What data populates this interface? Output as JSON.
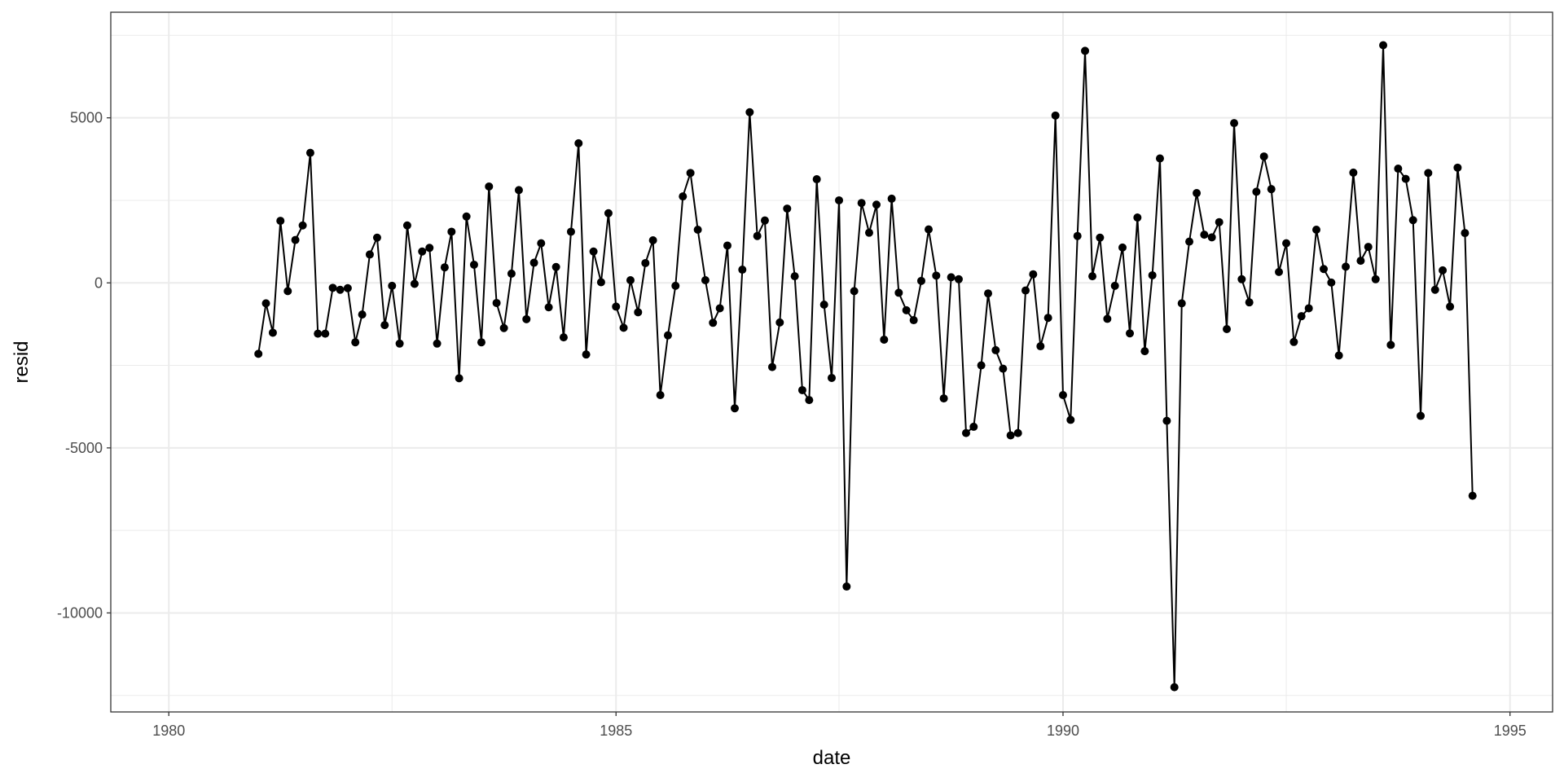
{
  "chart_data": {
    "type": "line",
    "markers": true,
    "xlabel": "date",
    "ylabel": "resid",
    "x_axis_type": "date",
    "xlim": [
      "1979-05-09",
      "1995-06-24"
    ],
    "ylim": [
      -13000,
      8200
    ],
    "x_ticks": [
      {
        "label": "1980",
        "value": "1980-01-01"
      },
      {
        "label": "1985",
        "value": "1985-01-01"
      },
      {
        "label": "1990",
        "value": "1990-01-01"
      },
      {
        "label": "1995",
        "value": "1995-01-01"
      }
    ],
    "y_ticks": [
      {
        "label": "5000",
        "value": 5000
      },
      {
        "label": "0",
        "value": 0
      },
      {
        "label": "-5000",
        "value": -5000
      },
      {
        "label": "-10000",
        "value": -10000
      }
    ],
    "y_minor_gridlines": [
      -12500,
      -7500,
      -2500,
      2500,
      7500
    ],
    "x_minor_gridlines": [
      "1982-07-01",
      "1987-07-01",
      "1992-07-01"
    ],
    "grid": true,
    "theme": "bw",
    "colors": {
      "line": "#000000",
      "grid": "#ebebeb",
      "panel_border": "#333333",
      "background": "#ffffff"
    },
    "series": [
      {
        "x": [
          "1981-01-01",
          "1981-02-01",
          "1981-03-01",
          "1981-04-01",
          "1981-05-01",
          "1981-06-01",
          "1981-07-01",
          "1981-08-01",
          "1981-09-01",
          "1981-10-01",
          "1981-11-01",
          "1981-12-01",
          "1982-01-01",
          "1982-02-01",
          "1982-03-01",
          "1982-04-01",
          "1982-05-01",
          "1982-06-01",
          "1982-07-01",
          "1982-08-01",
          "1982-09-01",
          "1982-10-01",
          "1982-11-01",
          "1982-12-01",
          "1983-01-01",
          "1983-02-01",
          "1983-03-01",
          "1983-04-01",
          "1983-05-01",
          "1983-06-01",
          "1983-07-01",
          "1983-08-01",
          "1983-09-01",
          "1983-10-01",
          "1983-11-01",
          "1983-12-01",
          "1984-01-01",
          "1984-02-01",
          "1984-03-01",
          "1984-04-01",
          "1984-05-01",
          "1984-06-01",
          "1984-07-01",
          "1984-08-01",
          "1984-09-01",
          "1984-10-01",
          "1984-11-01",
          "1984-12-01",
          "1985-01-01",
          "1985-02-01",
          "1985-03-01",
          "1985-04-01",
          "1985-05-01",
          "1985-06-01",
          "1985-07-01",
          "1985-08-01",
          "1985-09-01",
          "1985-10-01",
          "1985-11-01",
          "1985-12-01",
          "1986-01-01",
          "1986-02-01",
          "1986-03-01",
          "1986-04-01",
          "1986-05-01",
          "1986-06-01",
          "1986-07-01",
          "1986-08-01",
          "1986-09-01",
          "1986-10-01",
          "1986-11-01",
          "1986-12-01",
          "1987-01-01",
          "1987-02-01",
          "1987-03-01",
          "1987-04-01",
          "1987-05-01",
          "1987-06-01",
          "1987-07-01",
          "1987-08-01",
          "1987-09-01",
          "1987-10-01",
          "1987-11-01",
          "1987-12-01",
          "1988-01-01",
          "1988-02-01",
          "1988-03-01",
          "1988-04-01",
          "1988-05-01",
          "1988-06-01",
          "1988-07-01",
          "1988-08-01",
          "1988-09-01",
          "1988-10-01",
          "1988-11-01",
          "1988-12-01",
          "1989-01-01",
          "1989-02-01",
          "1989-03-01",
          "1989-04-01",
          "1989-05-01",
          "1989-06-01",
          "1989-07-01",
          "1989-08-01",
          "1989-09-01",
          "1989-10-01",
          "1989-11-01",
          "1989-12-01",
          "1990-01-01",
          "1990-02-01",
          "1990-03-01",
          "1990-04-01",
          "1990-05-01",
          "1990-06-01",
          "1990-07-01",
          "1990-08-01",
          "1990-09-01",
          "1990-10-01",
          "1990-11-01",
          "1990-12-01",
          "1991-01-01",
          "1991-02-01",
          "1991-03-01",
          "1991-04-01",
          "1991-05-01",
          "1991-06-01",
          "1991-07-01",
          "1991-08-01",
          "1991-09-01",
          "1991-10-01",
          "1991-11-01",
          "1991-12-01",
          "1992-01-01",
          "1992-02-01",
          "1992-03-01",
          "1992-04-01",
          "1992-05-01",
          "1992-06-01",
          "1992-07-01",
          "1992-08-01",
          "1992-09-01",
          "1992-10-01",
          "1992-11-01",
          "1992-12-01",
          "1993-01-01",
          "1993-02-01",
          "1993-03-01",
          "1993-04-01",
          "1993-05-01",
          "1993-06-01",
          "1993-07-01",
          "1993-08-01",
          "1993-09-01",
          "1993-10-01",
          "1993-11-01",
          "1993-12-01",
          "1994-01-01",
          "1994-02-01",
          "1994-03-01",
          "1994-04-01",
          "1994-05-01",
          "1994-06-01",
          "1994-07-01",
          "1994-08-01"
        ],
        "y": [
          -2150,
          -620,
          -1510,
          1880,
          -250,
          1300,
          1740,
          3940,
          -1540,
          -1540,
          -150,
          -210,
          -160,
          -1800,
          -960,
          860,
          1370,
          -1280,
          -90,
          -1840,
          1740,
          -30,
          950,
          1060,
          -1840,
          470,
          1550,
          -2890,
          2010,
          550,
          -1800,
          2920,
          -610,
          -1370,
          280,
          2810,
          -1100,
          610,
          1200,
          -740,
          480,
          -1650,
          1550,
          4230,
          -2170,
          950,
          20,
          2110,
          -720,
          -1360,
          80,
          -890,
          600,
          1290,
          -3400,
          -1590,
          -90,
          2620,
          3330,
          1610,
          80,
          -1210,
          -770,
          1130,
          -3800,
          400,
          5170,
          1420,
          1890,
          -2550,
          -1200,
          2250,
          200,
          -3250,
          -3550,
          3140,
          -660,
          -2880,
          2500,
          -9200,
          -250,
          2420,
          1520,
          2370,
          -1720,
          2550,
          -300,
          -830,
          -1130,
          60,
          1620,
          220,
          -3500,
          170,
          110,
          -4550,
          -4360,
          -2500,
          -320,
          -2040,
          -2600,
          -4620,
          -4550,
          -230,
          260,
          -1920,
          -1060,
          5070,
          -3400,
          -4150,
          1420,
          7030,
          200,
          1370,
          -1090,
          -90,
          1070,
          -1530,
          1980,
          -2070,
          230,
          3770,
          -4180,
          -12250,
          -620,
          1250,
          2720,
          1460,
          1380,
          1840,
          -1400,
          4840,
          110,
          -590,
          2760,
          3830,
          2840,
          330,
          1200,
          -1790,
          -1010,
          -770,
          1610,
          420,
          10,
          -2200,
          490,
          3340,
          670,
          1090,
          110,
          7200,
          -1880,
          3460,
          3150,
          1900,
          -4030,
          3330,
          -210,
          380,
          -720,
          3490,
          1510,
          -6450
        ]
      }
    ]
  }
}
